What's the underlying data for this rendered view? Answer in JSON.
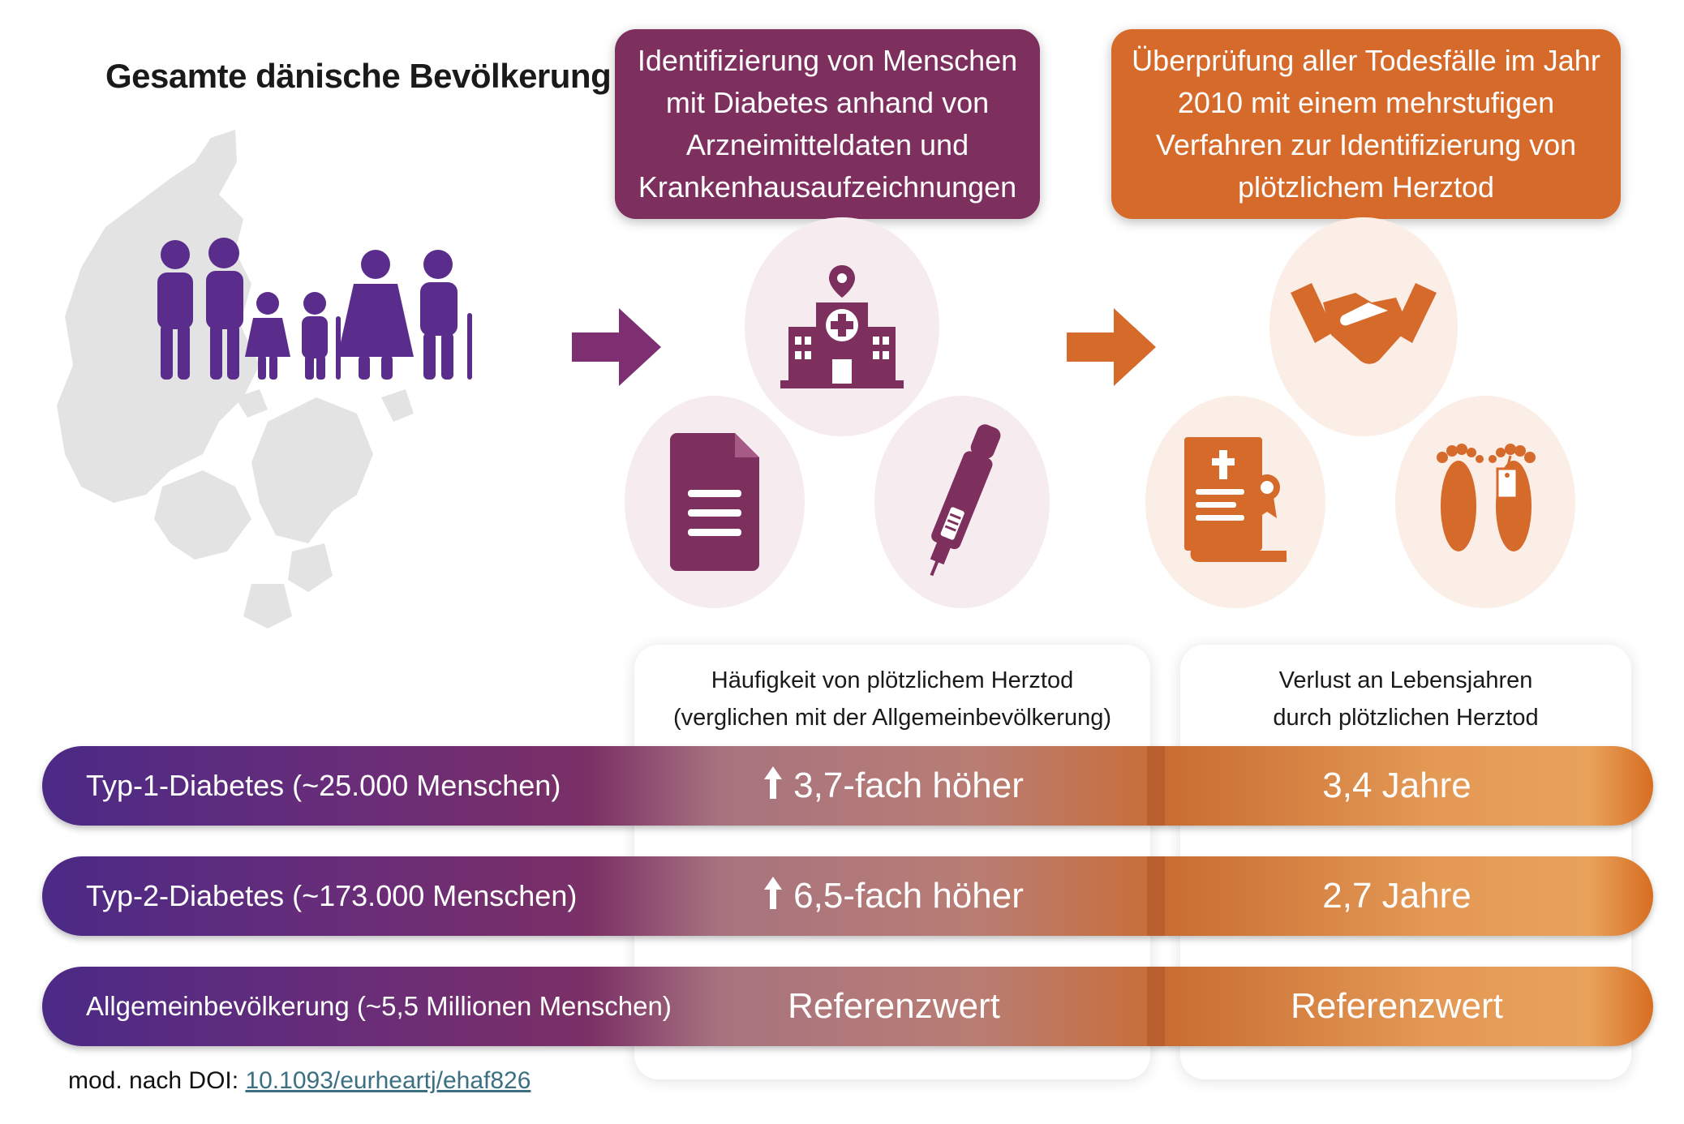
{
  "left": {
    "title": "Gesamte dänische Bevölkerung"
  },
  "top_boxes": {
    "purple_text": "Identifizierung von Menschen mit Diabetes anhand von Arzneimitteldaten und Krankenhausaufzeichnungen",
    "orange_text": "Überprüfung aller Todesfälle im Jahr 2010 mit einem mehrstufigen Verfahren zur Identifizierung von plötzlichem Herztod"
  },
  "icons": [
    "people-icon",
    "hospital-icon",
    "document-icon",
    "insulin-pen-icon",
    "handshake-icon",
    "death-certificate-icon",
    "feet-toe-tag-icon"
  ],
  "table": {
    "col1_header_line1": "Häufigkeit von plötzlichem Herztod",
    "col1_header_line2": "(verglichen mit der Allgemeinbevölkerung)",
    "col2_header_line1": "Verlust an Lebensjahren",
    "col2_header_line2": "durch plötzlichen Herztod",
    "rows": [
      {
        "label": "Typ-1-Diabetes (~25.000 Menschen)",
        "freq": "3,7-fach höher",
        "years": "3,4 Jahre"
      },
      {
        "label": "Typ-2-Diabetes (~173.000 Menschen)",
        "freq": "6,5-fach höher",
        "years": "2,7 Jahre"
      },
      {
        "label": "Allgemeinbevölkerung (~5,5 Millionen Menschen)",
        "freq": "Referenzwert",
        "years": "Referenzwert"
      }
    ]
  },
  "source": {
    "prefix": "mod. nach DOI: ",
    "doi": "10.1093/eurheartj/ehaf826"
  },
  "colors": {
    "purple": "#5a2d8c",
    "plum": "#7d2f5e",
    "orange": "#d56a2a"
  }
}
